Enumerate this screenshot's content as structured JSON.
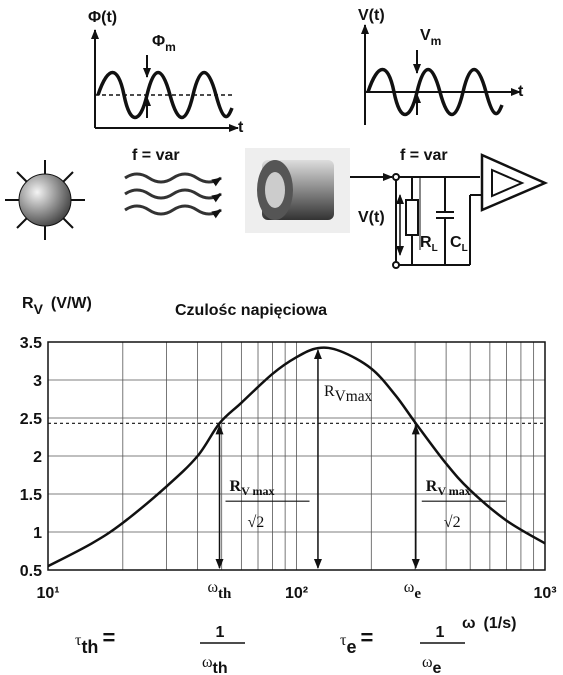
{
  "diagram": {
    "flux_plot": {
      "y_label": "Φ(t)",
      "amplitude": "Φ",
      "amplitude_sub": "m",
      "x_label": "t"
    },
    "voltage_plot": {
      "y_label": "V(t)",
      "amplitude": "V",
      "amplitude_sub": "m",
      "x_label": "t"
    },
    "radiation_label": "f = var",
    "output_label": "f = var",
    "circuit": {
      "voltage": "V(t)",
      "resistor": "R",
      "resistor_sub": "L",
      "capacitor": "C",
      "capacitor_sub": "L"
    }
  },
  "chart_data": {
    "type": "line",
    "xscale": "log",
    "grid": true,
    "color": "#111111",
    "title": "Czulośc napięciowa",
    "y_label": {
      "symbol": "R",
      "sub": "V",
      "unit": "(V/W)"
    },
    "x_label": {
      "symbol": "ω",
      "unit": "(1/s)"
    },
    "x": [
      10,
      15,
      20,
      30,
      40,
      49,
      60,
      80,
      100,
      122,
      150,
      200,
      250,
      302,
      400,
      500,
      700,
      1000
    ],
    "values": [
      0.55,
      0.85,
      1.12,
      1.6,
      2.0,
      2.43,
      2.7,
      3.08,
      3.3,
      3.42,
      3.38,
      3.15,
      2.8,
      2.43,
      1.9,
      1.55,
      1.15,
      0.85
    ],
    "xlim": [
      10,
      1000
    ],
    "xticks": [
      {
        "value": 10,
        "label": "10¹"
      },
      {
        "value": 100,
        "label": "10²"
      },
      {
        "value": 1000,
        "label": "10³"
      }
    ],
    "x_minor_grid": [
      20,
      30,
      40,
      50,
      60,
      70,
      80,
      90,
      200,
      300,
      400,
      500,
      600,
      700,
      800,
      900
    ],
    "ylim": [
      0.5,
      3.5
    ],
    "yticks": [
      0.5,
      1,
      1.5,
      2,
      2.5,
      3,
      3.5
    ],
    "reference_y": 2.43,
    "peak_label": {
      "symbol": "R",
      "sub": "Vmax"
    },
    "half_labels": [
      {
        "symbol": "R",
        "sub": "V max",
        "root": "√2"
      },
      {
        "symbol": "R",
        "sub": "V max",
        "root": "√2"
      }
    ],
    "markers": [
      {
        "x": 49,
        "symbol": "ω",
        "sub": "th"
      },
      {
        "x": 302,
        "symbol": "ω",
        "sub": "e"
      }
    ],
    "formulas": [
      {
        "tau": "τ",
        "sub": "th",
        "eq": "=",
        "num": "1",
        "den": "ω",
        "den_sub": "th"
      },
      {
        "tau": "τ",
        "sub": "e",
        "eq": "=",
        "num": "1",
        "den": "ω",
        "den_sub": "e"
      }
    ]
  }
}
